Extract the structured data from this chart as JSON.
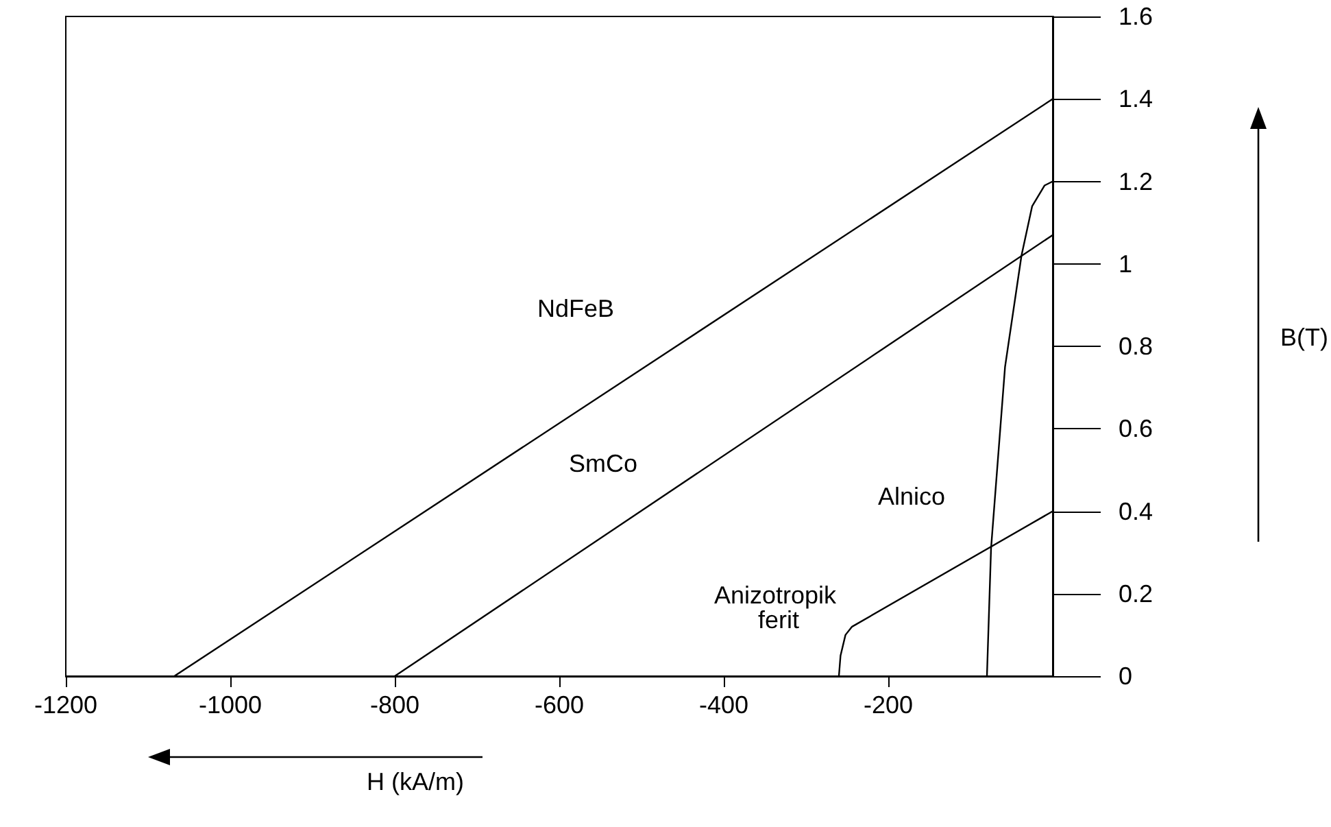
{
  "chart_data": {
    "type": "line",
    "xlabel": "H (kA/m)",
    "annotations": [
      "B(T)"
    ],
    "xlim": [
      -1200,
      0
    ],
    "ylim": [
      0,
      1.6
    ],
    "xticks": [
      -1200,
      -1000,
      -800,
      -600,
      -400,
      -200
    ],
    "yticks": [
      0,
      0.2,
      0.4,
      0.6,
      0.8,
      1,
      1.2,
      1.4,
      1.6
    ],
    "grid": false,
    "legend": false,
    "marker": "none",
    "line_style": "solid",
    "series": [
      {
        "name": "NdFeB",
        "color": "#000000",
        "x": [
          -1068,
          0
        ],
        "values": [
          0,
          1.4
        ]
      },
      {
        "name": "SmCo",
        "color": "#000000",
        "x": [
          -800,
          0
        ],
        "values": [
          0,
          1.07
        ]
      },
      {
        "name": "Alnico",
        "color": "#000000",
        "x": [
          -80,
          -75,
          -58,
          -38,
          -25,
          -10,
          0
        ],
        "values": [
          0,
          0.31,
          0.75,
          1.02,
          1.14,
          1.19,
          1.2
        ]
      },
      {
        "name": "Anizotropik ferit",
        "color": "#000000",
        "x": [
          -260,
          -258,
          -252,
          -244,
          0
        ],
        "values": [
          0,
          0.05,
          0.1,
          0.12,
          0.4
        ]
      }
    ]
  }
}
